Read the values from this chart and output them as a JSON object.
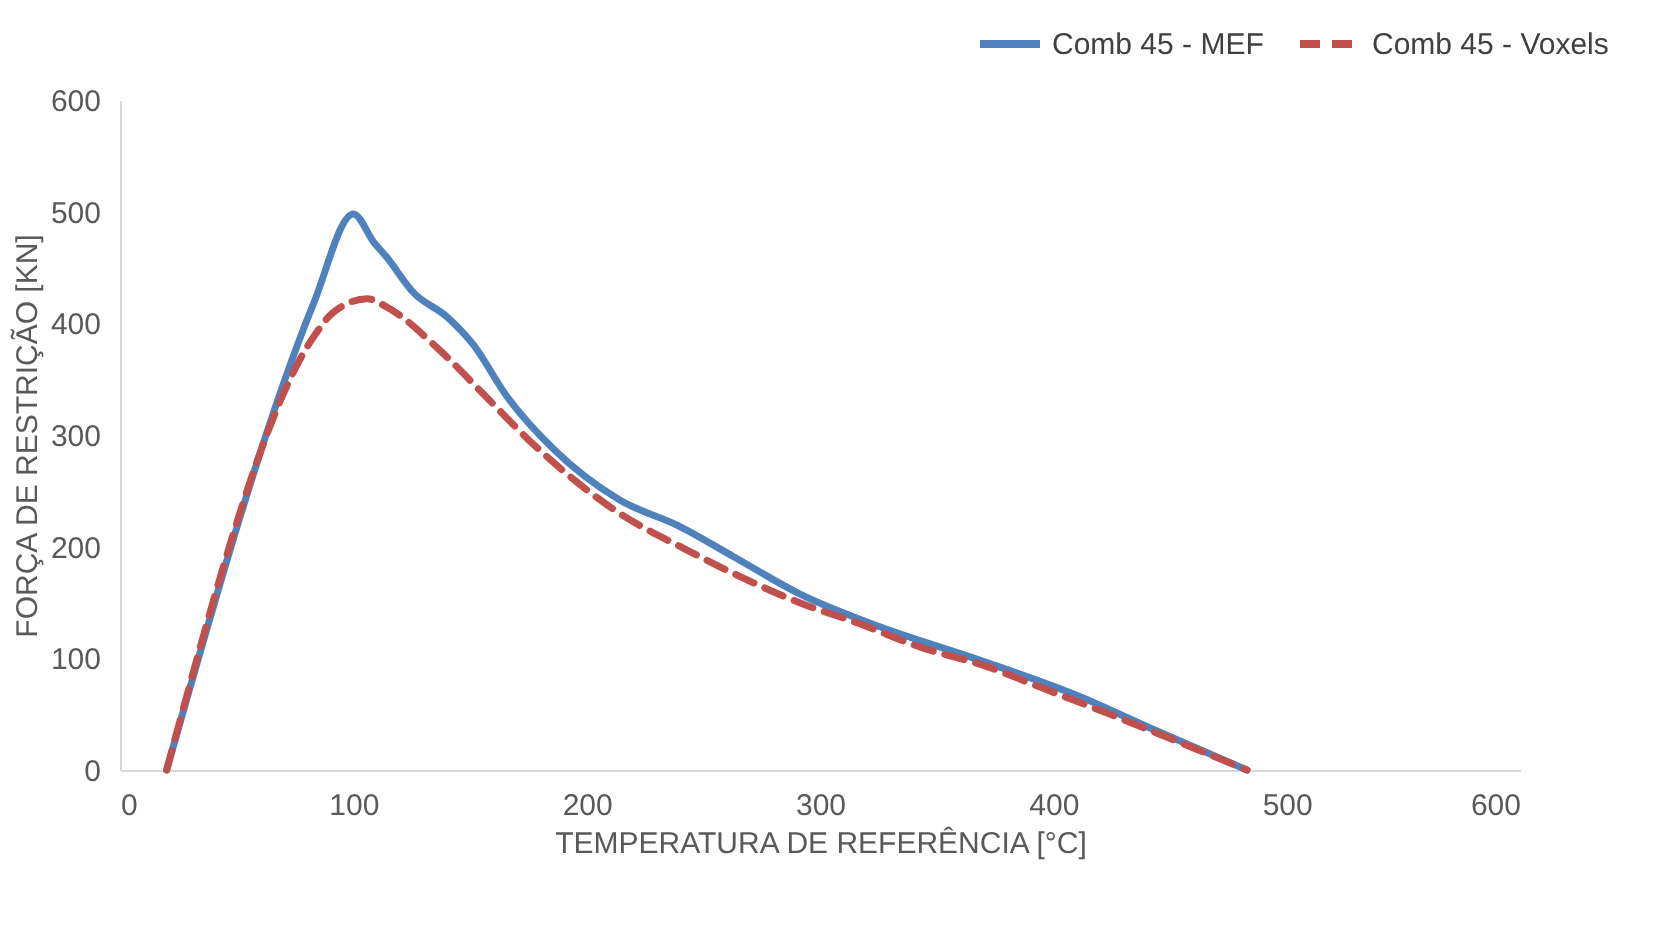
{
  "chart_data": {
    "type": "line",
    "xlabel": "TEMPERATURA DE REFERÊNCIA [°C]",
    "ylabel": "FORÇA DE RESTRIÇÃO [KN]",
    "xlim": [
      0,
      600
    ],
    "xticks": [
      0,
      100,
      200,
      300,
      400,
      500,
      600
    ],
    "ylim": [
      0,
      600
    ],
    "yticks": [
      0,
      100,
      200,
      300,
      400,
      500,
      600
    ],
    "grid": false,
    "legend": "top right",
    "marker": "none",
    "series": [
      {
        "name": "Comb 45 - MEF",
        "color": "#4f81bd",
        "line_style": "solid",
        "x": [
          20,
          83,
          100,
          109,
          114,
          126,
          140,
          151,
          166,
          186,
          214,
          240,
          263,
          291,
          326,
          369,
          411,
          440,
          483
        ],
        "values": [
          0,
          418,
          498,
          472,
          460,
          427,
          406,
          382,
          334,
          287,
          242,
          218,
          191,
          158,
          128,
          98,
          66,
          39,
          0
        ]
      },
      {
        "name": "Comb 45 - Voxels",
        "color": "#c0504d",
        "line_style": "dashed",
        "x": [
          20,
          83,
          91,
          106,
          114,
          137,
          157,
          177,
          214,
          243,
          266,
          291,
          317,
          343,
          371,
          397,
          423,
          448,
          483
        ],
        "values": [
          0,
          388,
          409,
          422,
          415,
          376,
          334,
          292,
          230,
          197,
          173,
          150,
          131,
          110,
          93,
          72,
          51,
          30,
          0
        ]
      }
    ]
  }
}
